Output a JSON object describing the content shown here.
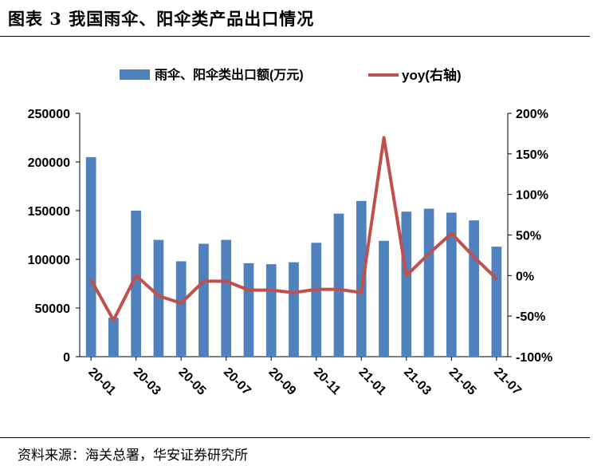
{
  "header": {
    "title": "图表 3 我国雨伞、阳伞类产品出口情况"
  },
  "footer": {
    "source": "资料来源：海关总署，华安证券研究所"
  },
  "chart_data": {
    "type": "bar+line",
    "categories": [
      "20-01",
      "20-02",
      "20-03",
      "20-04",
      "20-05",
      "20-06",
      "20-07",
      "20-08",
      "20-09",
      "20-10",
      "20-11",
      "20-12",
      "21-01",
      "21-02",
      "21-03",
      "21-04",
      "21-05",
      "21-06",
      "21-07"
    ],
    "tick_labels": [
      "20-01",
      "20-03",
      "20-05",
      "20-07",
      "20-09",
      "20-11",
      "21-01",
      "21-03",
      "21-05",
      "21-07"
    ],
    "series": [
      {
        "name": "雨伞、阳伞类出口额(万元)",
        "type": "bar",
        "axis": "left",
        "color": "#4f81bd",
        "values": [
          205000,
          40000,
          150000,
          120000,
          98000,
          116000,
          120000,
          96000,
          95000,
          97000,
          117000,
          147000,
          160000,
          119000,
          149000,
          152000,
          148000,
          140000,
          113000
        ]
      },
      {
        "name": "yoy(右轴)",
        "type": "line",
        "axis": "right",
        "color": "#c0504d",
        "values": [
          -5,
          -55,
          0,
          -25,
          -34,
          -7,
          -7,
          -18,
          -18,
          -21,
          -17,
          -17,
          -21,
          170,
          0,
          27,
          52,
          23,
          -4
        ]
      }
    ],
    "y_left": {
      "min": 0,
      "max": 250000,
      "step": 50000,
      "ticks": [
        "0",
        "50000",
        "100000",
        "150000",
        "200000",
        "250000"
      ]
    },
    "y_right": {
      "min": -100,
      "max": 200,
      "step": 50,
      "ticks": [
        "-100%",
        "-50%",
        "0%",
        "50%",
        "100%",
        "150%",
        "200%"
      ]
    },
    "legend": {
      "position": "top"
    },
    "grid": false
  }
}
